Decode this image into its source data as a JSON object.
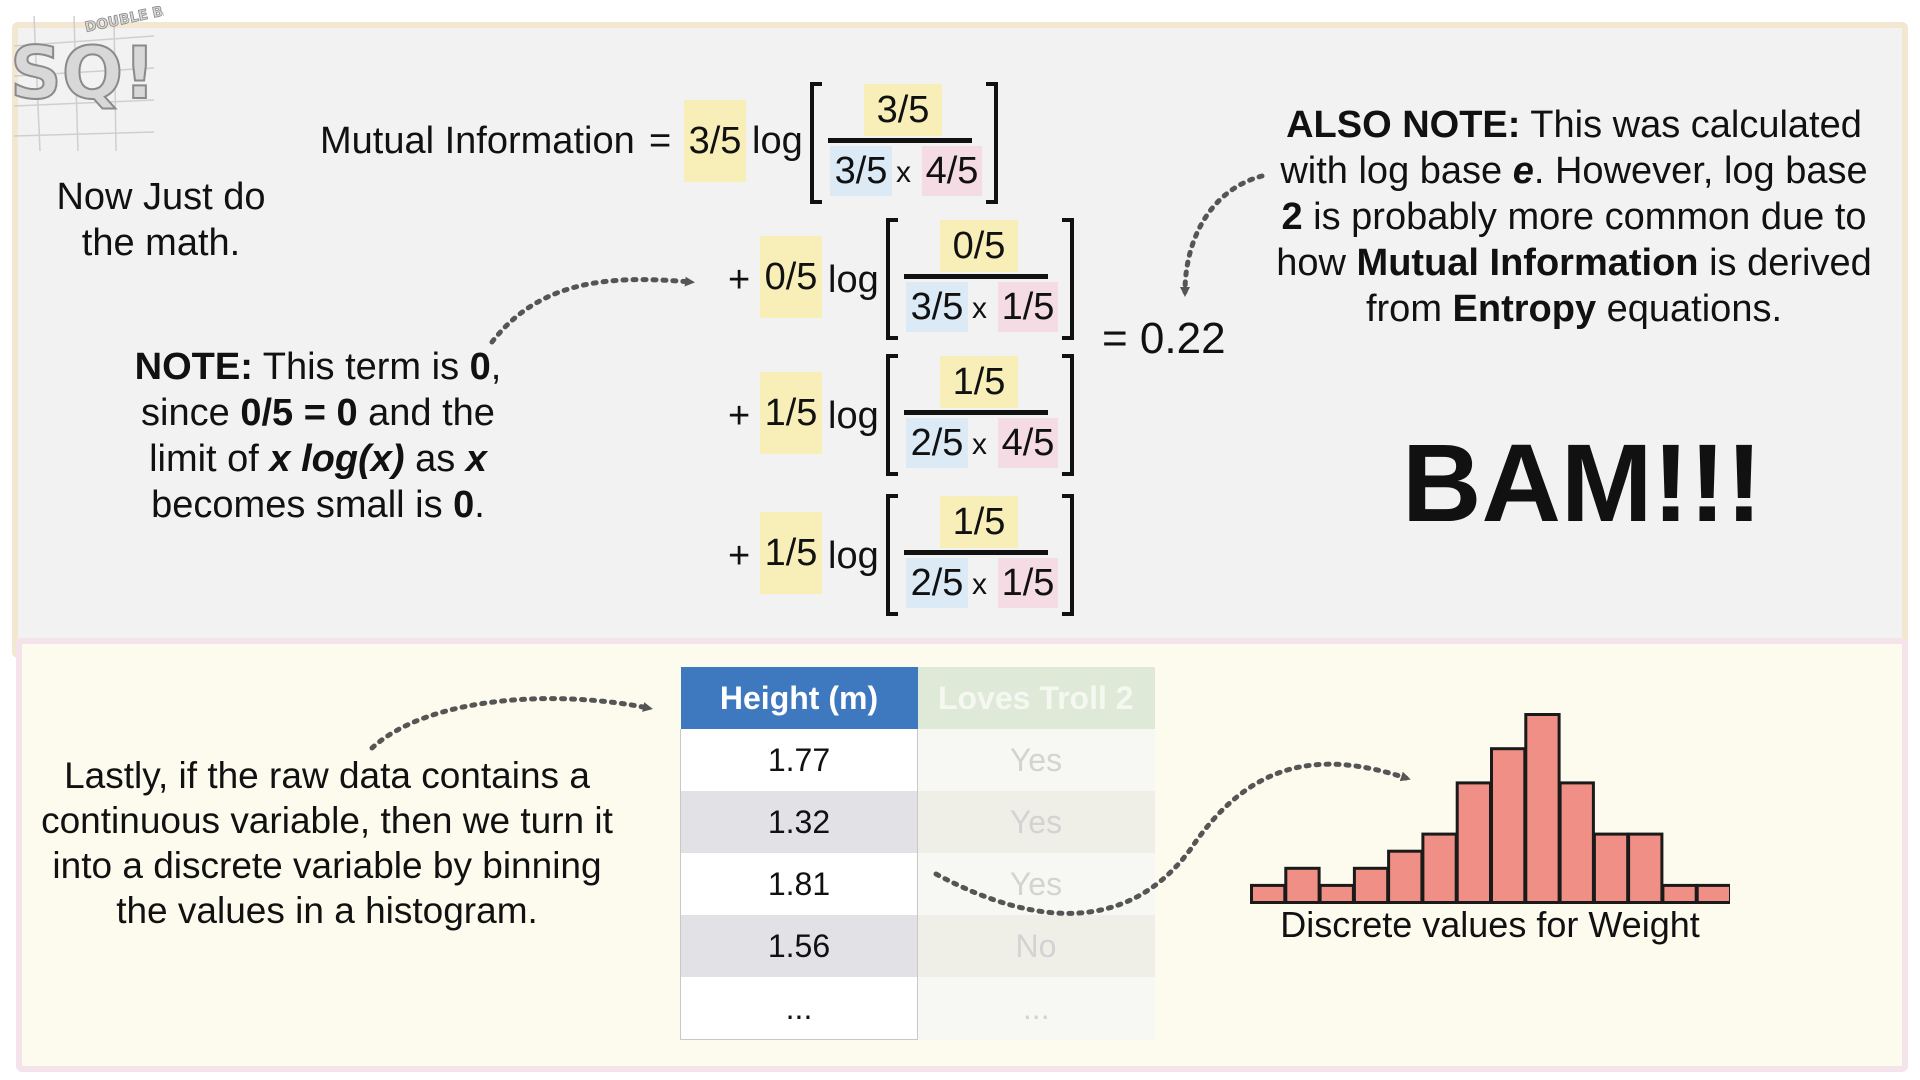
{
  "logo": {
    "main": "SQ!",
    "badge": "DOUBLE BAM!!!"
  },
  "left_text": {
    "line1": "Now Just do",
    "line2": "the math."
  },
  "note": {
    "label": "NOTE:",
    "t1": " This term is ",
    "zero1": "0",
    "comma": ",",
    "l2a": "since ",
    "l2b": "0/5 = 0",
    "l2c": " and the",
    "l3a": "limit of ",
    "l3b": "x log(x)",
    "l3c": " as ",
    "l3d": "x",
    "l4a": "becomes small is ",
    "l4b": "0",
    "l4c": "."
  },
  "formula": {
    "lhs": "Mutual Information",
    "eq": "=",
    "log": "log",
    "plus": "+",
    "times": "x",
    "result": "= 0.22",
    "terms": [
      {
        "coef": "3/5",
        "num": "3/5",
        "d1": "3/5",
        "d2": "4/5"
      },
      {
        "coef": "0/5",
        "num": "0/5",
        "d1": "3/5",
        "d2": "1/5"
      },
      {
        "coef": "1/5",
        "num": "1/5",
        "d1": "2/5",
        "d2": "4/5"
      },
      {
        "coef": "1/5",
        "num": "1/5",
        "d1": "2/5",
        "d2": "1/5"
      }
    ]
  },
  "also_note": {
    "label": "ALSO NOTE:",
    "l1": " This was calculated",
    "l2a": "with log base ",
    "l2b": "e",
    "l2c": ". However, log base",
    "l3a": "2",
    "l3b": " is probably more common due to",
    "l4a": "how ",
    "l4b": "Mutual Information",
    "l4c": " is derived",
    "l5a": "from ",
    "l5b": "Entropy",
    "l5c": " equations."
  },
  "bam": "BAM!!!",
  "lastly": [
    "Lastly, if the raw data contains a",
    "continuous variable, then we turn it",
    "into a discrete variable by binning",
    "the values in a histogram."
  ],
  "table": {
    "headers": [
      "Height (m)",
      "Loves Troll 2"
    ],
    "rows": [
      [
        "1.77",
        "Yes"
      ],
      [
        "1.32",
        "Yes"
      ],
      [
        "1.81",
        "Yes"
      ],
      [
        "1.56",
        "No"
      ],
      [
        "...",
        "..."
      ]
    ]
  },
  "histogram": {
    "caption": "Discrete values for Weight",
    "fill": "#ef8f85",
    "stroke": "#1a1a1a"
  },
  "chart_data": {
    "type": "bar",
    "xlabel": "Discrete values for Weight",
    "values": [
      1,
      2,
      1,
      2,
      3,
      4,
      7,
      9,
      11,
      7,
      4,
      4,
      1,
      1
    ]
  },
  "colors": {
    "coef_highlight": "#f8efb8",
    "den1_highlight": "#dceaf6",
    "den2_highlight": "#f5dbe4",
    "table_header": "#3e79c0"
  }
}
